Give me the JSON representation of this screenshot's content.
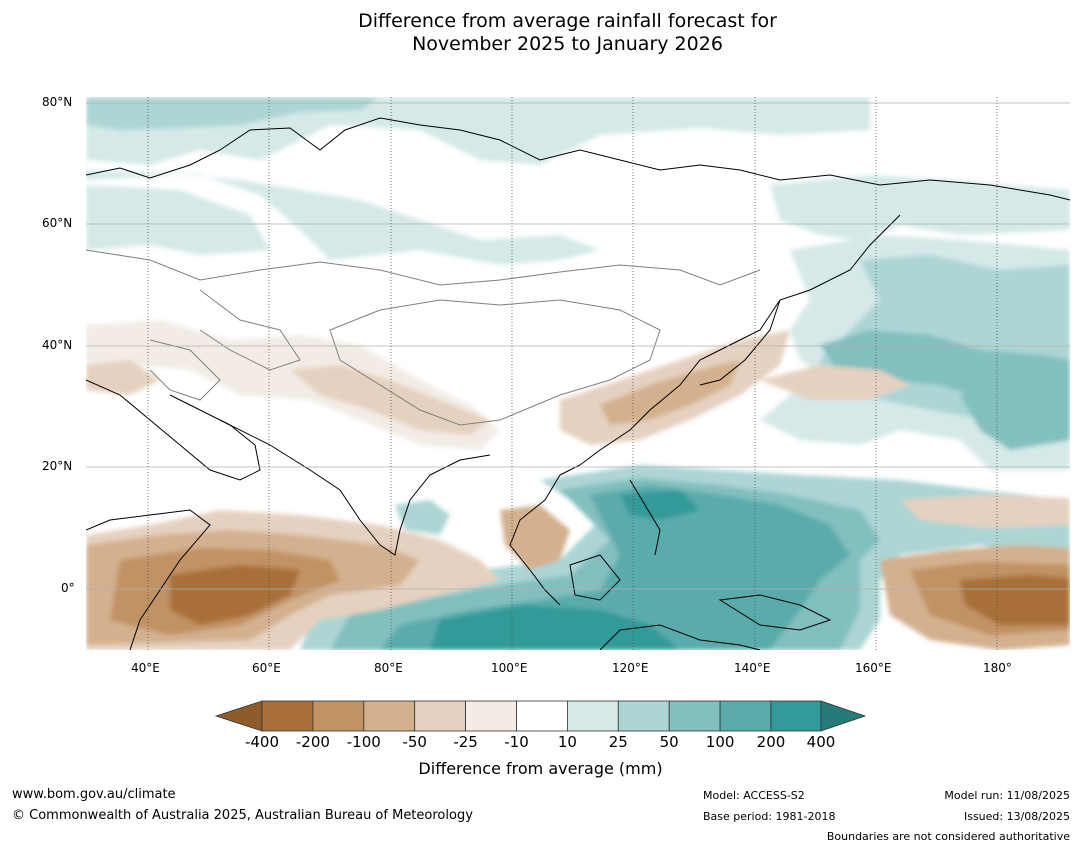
{
  "title": {
    "line1": "Difference from average rainfall forecast for",
    "line2": "November 2025 to January 2026"
  },
  "map": {
    "lat_labels": [
      "80°N",
      "60°N",
      "40°N",
      "20°N",
      "0°"
    ],
    "lon_labels": [
      "40°E",
      "60°E",
      "80°E",
      "100°E",
      "120°E",
      "140°E",
      "160°E",
      "180°"
    ]
  },
  "colorbar": {
    "title": "Difference from average (mm)",
    "ticks": [
      "-400",
      "-200",
      "-100",
      "-50",
      "-25",
      "-10",
      "10",
      "25",
      "50",
      "100",
      "200",
      "400"
    ],
    "colors": {
      "lt_-400": "#8e5b2a",
      "-400_-200": "#a87038",
      "-200_-100": "#c19263",
      "-100_-50": "#d3b08e",
      "-50_-25": "#e5d1bf",
      "-25_-10": "#f2ece5",
      "-10_10": "#ffffff",
      "10_25": "#d4e9e8",
      "25_50": "#acd5d4",
      "50_100": "#82bfbf",
      "100_200": "#5aabab",
      "200_400": "#339a99",
      "gt_400": "#267a78"
    }
  },
  "footer": {
    "website": "www.bom.gov.au/climate",
    "copyright": "© Commonwealth of Australia 2025, Australian Bureau of Meteorology",
    "model": "Model: ACCESS-S2",
    "base_period": "Base period: 1981-2018",
    "model_run": "Model run: 11/08/2025",
    "issued": "Issued: 13/08/2025",
    "disclaimer": "Boundaries are not considered authoritative"
  }
}
